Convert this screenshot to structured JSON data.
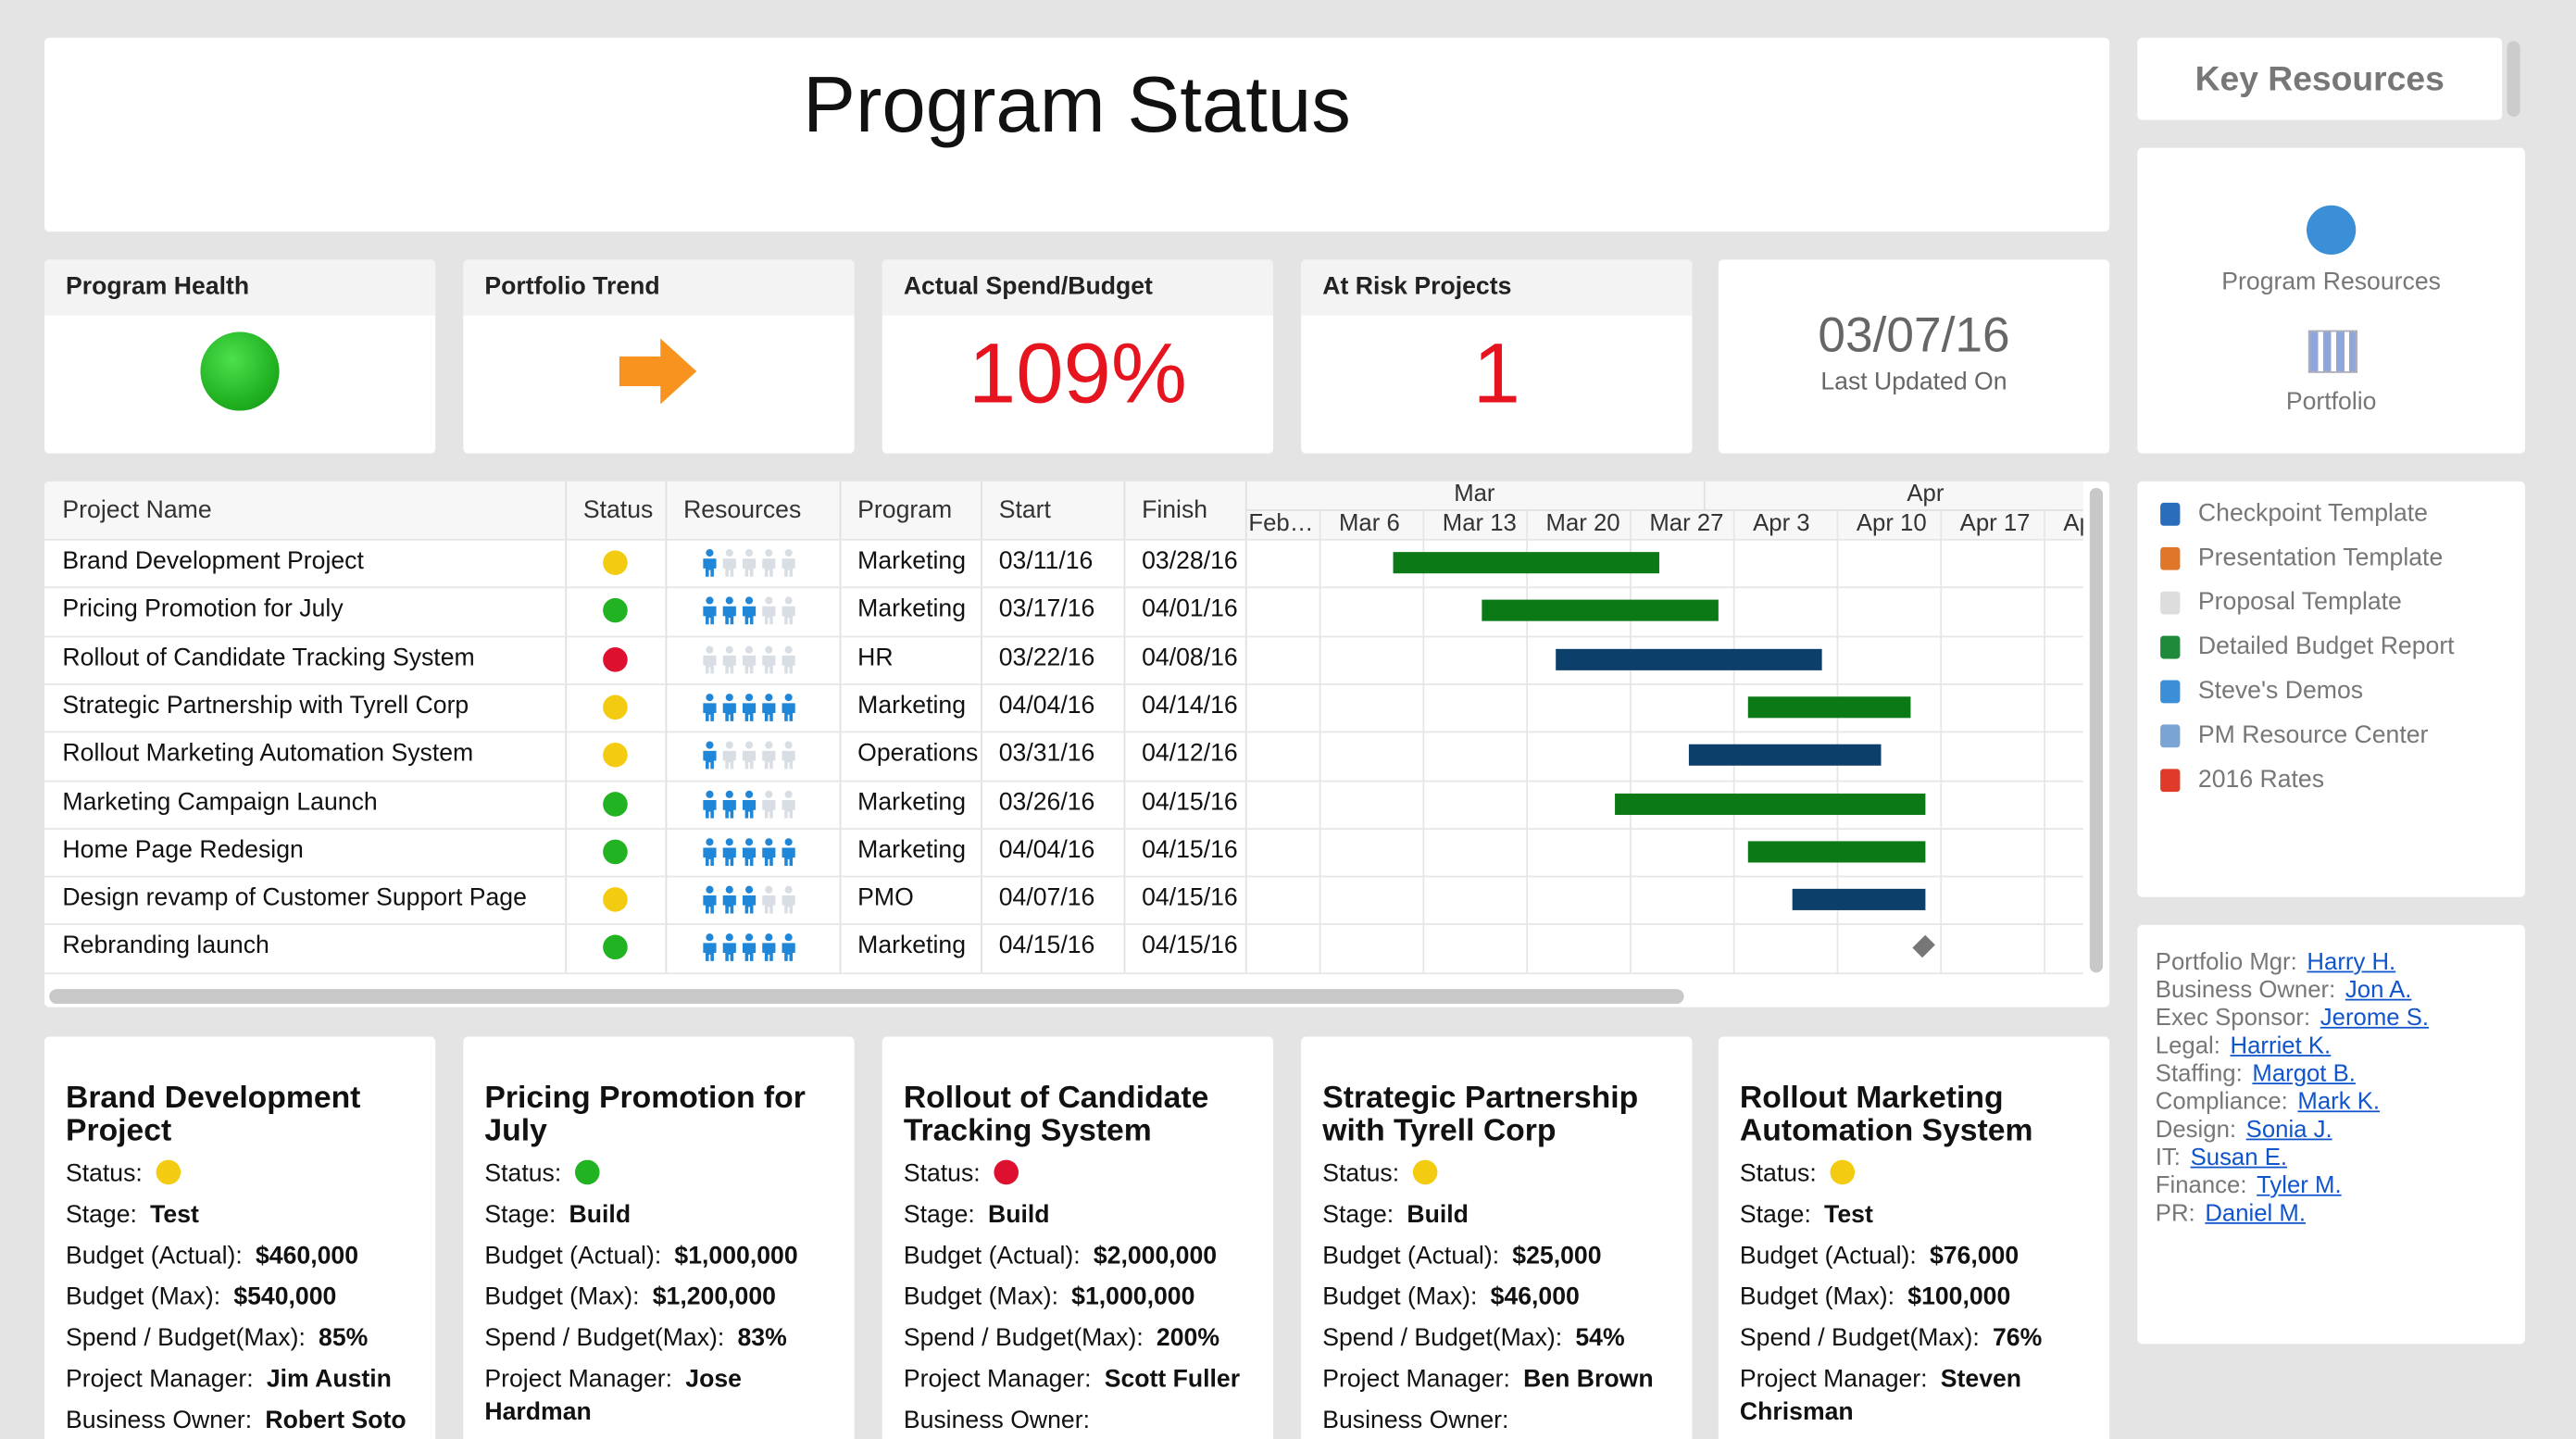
{
  "header": {
    "title": "Program Status"
  },
  "kpis": [
    {
      "title": "Program Health",
      "status": "green"
    },
    {
      "title": "Portfolio Trend"
    },
    {
      "title": "Actual Spend/Budget",
      "value": "109%"
    },
    {
      "title": "At Risk Projects",
      "value": "1"
    }
  ],
  "last_updated": {
    "date": "03/07/16",
    "label": "Last Updated On"
  },
  "key_resources": {
    "title": "Key Resources",
    "links": [
      "Program Resources",
      "Portfolio"
    ]
  },
  "documents": [
    "Checkpoint Template",
    "Presentation Template",
    "Proposal Template",
    "Detailed Budget Report",
    "Steve's Demos",
    "PM Resource Center",
    "2016 Rates"
  ],
  "contacts": [
    {
      "role": "Portfolio Mgr:",
      "name": "Harry H."
    },
    {
      "role": "Business Owner:",
      "name": "Jon A."
    },
    {
      "role": "Exec Sponsor:",
      "name": "Jerome S."
    },
    {
      "role": "Legal:",
      "name": "Harriet K."
    },
    {
      "role": "Staffing:",
      "name": "Margot B."
    },
    {
      "role": "Compliance:",
      "name": "Mark K."
    },
    {
      "role": "Design:",
      "name": "Sonia J."
    },
    {
      "role": "IT:",
      "name": "Susan E."
    },
    {
      "role": "Finance:",
      "name": "Tyler M."
    },
    {
      "role": "PR:",
      "name": "Daniel M."
    }
  ],
  "table": {
    "columns": [
      "Project Name",
      "Status",
      "Resources",
      "Program",
      "Start",
      "Finish"
    ],
    "rows": [
      {
        "name": "Brand Development Project",
        "status": "yellow",
        "resources": 1,
        "program": "Marketing",
        "start": "03/11/16",
        "finish": "03/28/16",
        "bar_color": "#0b7a16"
      },
      {
        "name": "Pricing Promotion for July",
        "status": "green",
        "resources": 3,
        "program": "Marketing",
        "start": "03/17/16",
        "finish": "04/01/16",
        "bar_color": "#0b7a16"
      },
      {
        "name": "Rollout of Candidate Tracking System",
        "status": "red",
        "resources": 0,
        "program": "HR",
        "start": "03/22/16",
        "finish": "04/08/16",
        "bar_color": "#0d3f6b"
      },
      {
        "name": "Strategic Partnership with Tyrell Corp",
        "status": "yellow",
        "resources": 5,
        "program": "Marketing",
        "start": "04/04/16",
        "finish": "04/14/16",
        "bar_color": "#0b7a16"
      },
      {
        "name": "Rollout Marketing Automation System",
        "status": "yellow",
        "resources": 1,
        "program": "Operations",
        "start": "03/31/16",
        "finish": "04/12/16",
        "bar_color": "#0d3f6b"
      },
      {
        "name": "Marketing Campaign Launch",
        "status": "green",
        "resources": 3,
        "program": "Marketing",
        "start": "03/26/16",
        "finish": "04/15/16",
        "bar_color": "#0b7a16"
      },
      {
        "name": "Home Page Redesign",
        "status": "green",
        "resources": 5,
        "program": "Marketing",
        "start": "04/04/16",
        "finish": "04/15/16",
        "bar_color": "#0b7a16"
      },
      {
        "name": "Design revamp of Customer Support Page",
        "status": "yellow",
        "resources": 3,
        "program": "PMO",
        "start": "04/07/16",
        "finish": "04/15/16",
        "bar_color": "#0d3f6b"
      },
      {
        "name": "Rebranding launch",
        "status": "green",
        "resources": 5,
        "program": "Marketing",
        "start": "04/15/16",
        "finish": "04/15/16",
        "bar_color": "#777777"
      }
    ],
    "gantt": {
      "months": [
        "Mar",
        "Apr"
      ],
      "weeks": [
        "Feb…",
        "Mar 6",
        "Mar 13",
        "Mar 20",
        "Mar 27",
        "Apr 3",
        "Apr 10",
        "Apr 17",
        "Ap"
      ]
    }
  },
  "cards": [
    {
      "title": "Brand Development Project",
      "status": "yellow",
      "fields": [
        {
          "label": "Status:"
        },
        {
          "label": "Stage:",
          "value": "Test"
        },
        {
          "label": "Budget (Actual):",
          "value": "$460,000"
        },
        {
          "label": "Budget (Max):",
          "value": "$540,000"
        },
        {
          "label": "Spend / Budget(Max):",
          "value": "85%"
        },
        {
          "label": "Project Manager:",
          "value": "Jim Austin"
        },
        {
          "label": "Business Owner:",
          "value": "Robert Soto"
        }
      ]
    },
    {
      "title": "Pricing Promotion for July",
      "status": "green",
      "fields": [
        {
          "label": "Status:"
        },
        {
          "label": "Stage:",
          "value": "Build"
        },
        {
          "label": "Budget (Actual):",
          "value": "$1,000,000"
        },
        {
          "label": "Budget (Max):",
          "value": "$1,200,000"
        },
        {
          "label": "Spend / Budget(Max):",
          "value": "83%"
        },
        {
          "label": "Project Manager:",
          "value": "Jose Hardman"
        }
      ]
    },
    {
      "title": "Rollout of Candidate Tracking System",
      "status": "red",
      "fields": [
        {
          "label": "Status:"
        },
        {
          "label": "Stage:",
          "value": "Build"
        },
        {
          "label": "Budget (Actual):",
          "value": "$2,000,000"
        },
        {
          "label": "Budget (Max):",
          "value": "$1,000,000"
        },
        {
          "label": "Spend / Budget(Max):",
          "value": "200%"
        },
        {
          "label": "Project Manager:",
          "value": "Scott Fuller"
        },
        {
          "label": "Business Owner:"
        }
      ]
    },
    {
      "title": "Strategic Partnership with Tyrell Corp",
      "status": "yellow",
      "fields": [
        {
          "label": "Status:"
        },
        {
          "label": "Stage:",
          "value": "Build"
        },
        {
          "label": "Budget (Actual):",
          "value": "$25,000"
        },
        {
          "label": "Budget (Max):",
          "value": "$46,000"
        },
        {
          "label": "Spend / Budget(Max):",
          "value": "54%"
        },
        {
          "label": "Project Manager:",
          "value": "Ben Brown"
        },
        {
          "label": "Business Owner:"
        }
      ]
    },
    {
      "title": "Rollout Marketing Automation System",
      "status": "yellow",
      "fields": [
        {
          "label": "Status:"
        },
        {
          "label": "Stage:",
          "value": "Test"
        },
        {
          "label": "Budget (Actual):",
          "value": "$76,000"
        },
        {
          "label": "Budget (Max):",
          "value": "$100,000"
        },
        {
          "label": "Spend / Budget(Max):",
          "value": "76%"
        },
        {
          "label": "Project Manager:",
          "value": "Steven Chrisman"
        }
      ]
    }
  ]
}
